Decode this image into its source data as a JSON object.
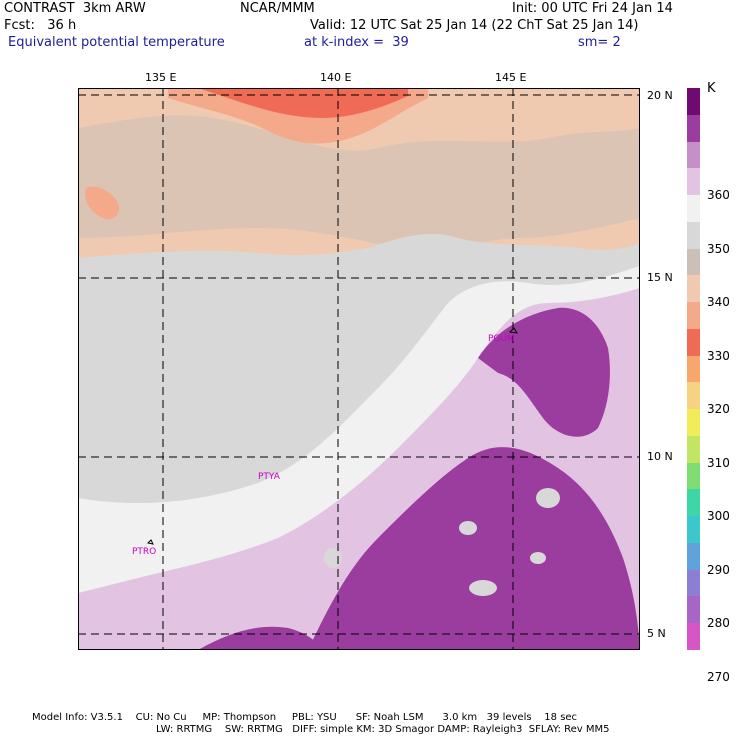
{
  "header": {
    "model": "CONTRAST  3km ARW",
    "source": "NCAR/MMM",
    "init": "Init: 00 UTC Fri 24 Jan 14",
    "fcst": "Fcst:   36 h",
    "valid": "Valid: 12 UTC Sat 25 Jan 14 (22 ChT Sat 25 Jan 14)",
    "field": "Equivalent potential temperature",
    "level": "at k-index =  39",
    "smooth": "sm= 2"
  },
  "map": {
    "lon_labels": [
      "135 E",
      "140 E",
      "145 E"
    ],
    "lat_labels": [
      "20 N",
      "15 N",
      "10 N",
      "5 N"
    ],
    "stations": [
      "PGUM",
      "PTYA",
      "PTRO"
    ]
  },
  "legend": {
    "unit": "K",
    "tick_labels": [
      "360",
      "350",
      "340",
      "330",
      "320",
      "310",
      "300",
      "290",
      "280",
      "270"
    ],
    "colors": [
      "#6e0a72",
      "#9a3d9e",
      "#c58fc8",
      "#e2c4e2",
      "#f1f1f1",
      "#d8d8d8",
      "#cbc0b8",
      "#efcab0",
      "#f4a98a",
      "#f06b55",
      "#f7a66c",
      "#f6d283",
      "#f0ec5a",
      "#c3e564",
      "#7ede74",
      "#3fd6a7",
      "#3bc7cc",
      "#5ea3dc",
      "#8b7ed4",
      "#a865c8",
      "#d656c6"
    ]
  },
  "footer": {
    "line1": "Model Info: V3.5.1    CU: No Cu     MP: Thompson     PBL: YSU      SF: Noah LSM      3.0 km   39 levels    18 sec",
    "line2": "LW: RRTMG    SW: RRTMG   DIFF: simple KM: 3D Smagor DAMP: Rayleigh3  SFLAY: Rev MM5"
  }
}
